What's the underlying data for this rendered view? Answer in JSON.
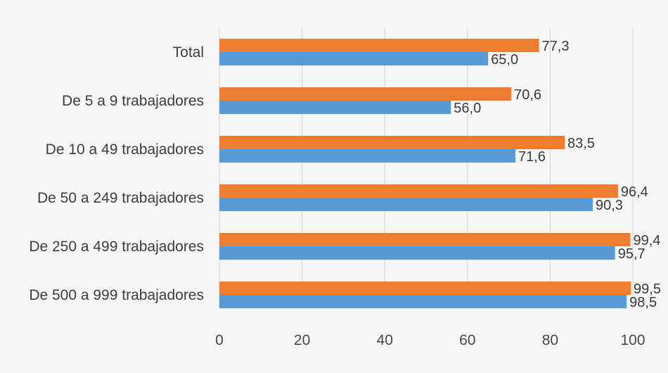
{
  "chart_data": {
    "type": "bar",
    "orientation": "horizontal",
    "categories": [
      "Total",
      "De 5 a 9 trabajadores",
      "De 10 a 49 trabajadores",
      "De 50 a 249 trabajadores",
      "De 250 a 499 trabajadores",
      "De 500 a 999 trabajadores"
    ],
    "series": [
      {
        "color": "#ed7d31",
        "values": [
          77.3,
          70.6,
          83.5,
          96.4,
          99.4,
          99.5
        ],
        "labels": [
          "77,3",
          "70,6",
          "83,5",
          "96,4",
          "99,4",
          "99,5"
        ]
      },
      {
        "color": "#5b9bd5",
        "values": [
          65.0,
          56.0,
          71.6,
          90.3,
          95.7,
          98.5
        ],
        "labels": [
          "65,0",
          "56,0",
          "71,6",
          "90,3",
          "95,7",
          "98,5"
        ]
      }
    ],
    "xlim": [
      0,
      100
    ],
    "xticks": [
      0,
      20,
      40,
      60,
      80,
      100
    ],
    "xtick_labels": [
      "0",
      "20",
      "40",
      "60",
      "80",
      "100"
    ],
    "grid": true,
    "legend": "none",
    "title": "",
    "xlabel": "",
    "ylabel": ""
  }
}
